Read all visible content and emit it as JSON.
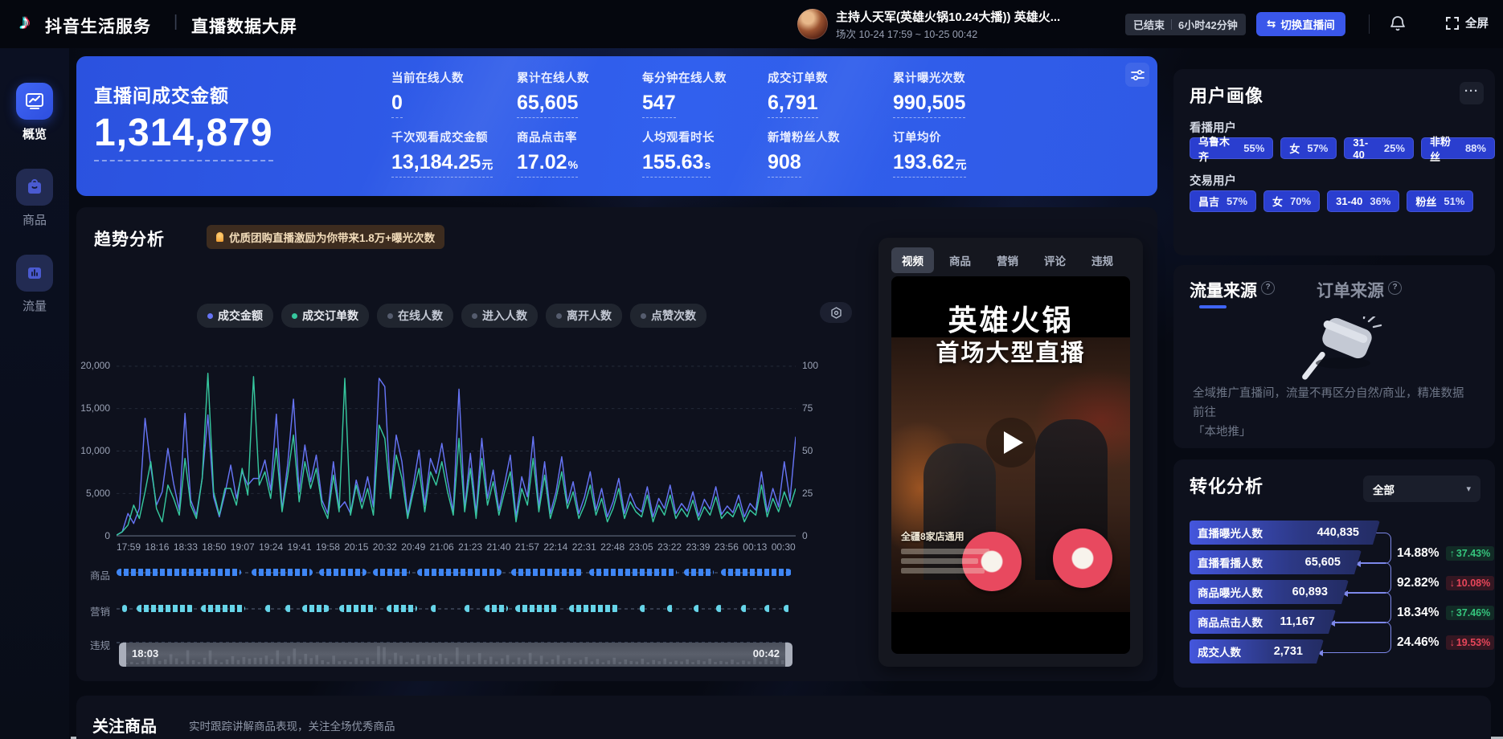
{
  "icons": {
    "tiktok_note": "♪",
    "divider": "|",
    "switch_arrows": "⇆",
    "dropdown_arrow": "▾",
    "more": "···",
    "help": "?",
    "up_arrow": "↑",
    "down_arrow": "↓"
  },
  "header": {
    "brand": "抖音生活服务",
    "page_title": "直播数据大屏",
    "host": {
      "name": "主持人天军(英雄火锅10.24大播)) 英雄火...",
      "session": "场次 10-24 17:59 ~ 10-25 00:42"
    },
    "status_badge": {
      "status": "已结束",
      "duration": "6小时42分钟"
    },
    "switch_button": "切换直播间",
    "fullscreen_label": "全屏"
  },
  "sidebar": {
    "items": [
      {
        "label": "概览",
        "active": true
      },
      {
        "label": "商品",
        "active": false
      },
      {
        "label": "流量",
        "active": false
      }
    ]
  },
  "kpi_card": {
    "main_label": "直播间成交金额",
    "main_value": "1,314,879",
    "metrics": [
      {
        "label": "当前在线人数",
        "value": "0",
        "unit": ""
      },
      {
        "label": "累计在线人数",
        "value": "65,605",
        "unit": ""
      },
      {
        "label": "每分钟在线人数",
        "value": "547",
        "unit": ""
      },
      {
        "label": "成交订单数",
        "value": "6,791",
        "unit": ""
      },
      {
        "label": "累计曝光次数",
        "value": "990,505",
        "unit": ""
      },
      {
        "label": "千次观看成交金额",
        "value": "13,184.25",
        "unit": "元"
      },
      {
        "label": "商品点击率",
        "value": "17.02",
        "unit": "%"
      },
      {
        "label": "人均观看时长",
        "value": "155.63",
        "unit": "s"
      },
      {
        "label": "新增粉丝人数",
        "value": "908",
        "unit": ""
      },
      {
        "label": "订单均价",
        "value": "193.62",
        "unit": "元"
      }
    ]
  },
  "trend": {
    "title": "趋势分析",
    "notice": "优质团购直播激励为你带来1.8万+曝光次数",
    "legend": [
      {
        "label": "成交金额",
        "color": "#6674f5",
        "active": true
      },
      {
        "label": "成交订单数",
        "color": "#36c79e",
        "active": true
      },
      {
        "label": "在线人数",
        "color": "#555c6e",
        "active": false
      },
      {
        "label": "进入人数",
        "color": "#555c6e",
        "active": false
      },
      {
        "label": "离开人数",
        "color": "#555c6e",
        "active": false
      },
      {
        "label": "点赞次数",
        "color": "#555c6e",
        "active": false
      }
    ],
    "chart_data": {
      "type": "line",
      "title": "趋势分析",
      "x_tick_labels": [
        "17:59",
        "18:16",
        "18:33",
        "18:50",
        "19:07",
        "19:24",
        "19:41",
        "19:58",
        "20:15",
        "20:32",
        "20:49",
        "21:06",
        "21:23",
        "21:40",
        "21:57",
        "22:14",
        "22:31",
        "22:48",
        "23:05",
        "23:22",
        "23:39",
        "23:56",
        "00:13",
        "00:30"
      ],
      "y_left": {
        "ticks": [
          "20,000",
          "15,000",
          "10,000",
          "5,000",
          "0"
        ],
        "max": 20000
      },
      "y_right": {
        "ticks": [
          "100",
          "75",
          "50",
          "25",
          "0"
        ],
        "max": 100
      },
      "grid": true,
      "legend_position": "top",
      "series": [
        {
          "name": "成交金额",
          "axis": "left",
          "color": "#6674f5",
          "values": [
            0,
            400,
            2600,
            1400,
            3200,
            14000,
            8200,
            3600,
            5200,
            10400,
            6200,
            3000,
            14600,
            4200,
            2400,
            6800,
            14400,
            4600,
            2200,
            5000,
            8400,
            4400,
            7600,
            6000,
            6800,
            6800,
            9000,
            5400,
            14500,
            3000,
            8600,
            16300,
            5200,
            10800,
            6400,
            9600,
            4200,
            2600,
            8800,
            3200,
            4000,
            2600,
            6600,
            4000,
            7000,
            3400,
            18800,
            17800,
            4800,
            12000,
            8800,
            2400,
            6000,
            10200,
            3600,
            9200,
            7400,
            11000,
            6600,
            2800,
            17500,
            3200,
            9800,
            2600,
            11600,
            4400,
            7800,
            3000,
            6200,
            9600,
            2200,
            7000,
            4600,
            11800,
            3400,
            8800,
            2600,
            5200,
            9400,
            3800,
            6400,
            2600,
            4600,
            7600,
            3000,
            5600,
            2200,
            4000,
            6800,
            2600,
            5000,
            3400,
            2800,
            5800,
            2200,
            4400,
            3200,
            6000,
            2600,
            3800,
            2900,
            5200,
            2300,
            4300,
            3100,
            5800,
            2500,
            3500,
            2700,
            4800,
            2200,
            3800,
            3000,
            7600,
            2800,
            5600,
            3400,
            8800,
            4200,
            11800
          ]
        },
        {
          "name": "成交订单数",
          "axis": "right",
          "color": "#36c79e",
          "values": [
            0,
            2,
            6,
            18,
            10,
            26,
            44,
            16,
            8,
            30,
            22,
            12,
            46,
            18,
            10,
            34,
            97,
            26,
            12,
            28,
            28,
            18,
            40,
            24,
            95,
            30,
            38,
            22,
            52,
            14,
            36,
            60,
            20,
            44,
            28,
            40,
            18,
            10,
            36,
            14,
            94,
            12,
            30,
            16,
            28,
            12,
            66,
            58,
            22,
            48,
            34,
            10,
            26,
            40,
            14,
            38,
            30,
            44,
            26,
            12,
            58,
            14,
            40,
            10,
            46,
            18,
            32,
            12,
            26,
            38,
            8,
            28,
            18,
            46,
            14,
            36,
            10,
            22,
            38,
            16,
            26,
            10,
            18,
            30,
            12,
            22,
            8,
            16,
            28,
            10,
            20,
            14,
            11,
            24,
            8,
            18,
            12,
            24,
            10,
            16,
            11,
            21,
            9,
            17,
            12,
            23,
            10,
            14,
            11,
            19,
            8,
            15,
            12,
            30,
            11,
            22,
            14,
            26,
            17,
            28
          ]
        }
      ]
    },
    "event_rows": [
      {
        "label": "商品",
        "color": "#3f86f5",
        "segments": [
          [
            0,
            18.5
          ],
          [
            20,
            29
          ],
          [
            30,
            37
          ],
          [
            38,
            43.5
          ],
          [
            44.5,
            57
          ],
          [
            58.5,
            69
          ],
          [
            70,
            83
          ],
          [
            84,
            88.5
          ],
          [
            89.5,
            100
          ]
        ]
      },
      {
        "label": "营销",
        "color": "#66d4e8",
        "segments": [
          [
            0.8,
            1.6
          ],
          [
            3,
            11.5
          ],
          [
            12.5,
            19
          ],
          [
            22,
            23
          ],
          [
            25,
            26
          ],
          [
            27.5,
            31.5
          ],
          [
            33,
            38.5
          ],
          [
            40,
            44.5
          ],
          [
            46.5,
            47.5
          ],
          [
            51.5,
            52.5
          ],
          [
            54.5,
            58
          ],
          [
            59,
            65.5
          ],
          [
            67,
            74.5
          ],
          [
            77.5,
            78.5
          ],
          [
            81.5,
            82.5
          ],
          [
            85.5,
            86.5
          ],
          [
            88.8,
            89.8
          ],
          [
            92.5,
            93.5
          ],
          [
            96,
            97
          ],
          [
            98.8,
            99.8
          ]
        ]
      },
      {
        "label": "违规",
        "color": "#3a4252",
        "segments": []
      }
    ],
    "scrubber": {
      "start_label": "18:03",
      "end_label": "00:42"
    }
  },
  "video_panel": {
    "tabs": [
      {
        "label": "视频",
        "active": true
      },
      {
        "label": "商品",
        "active": false
      },
      {
        "label": "营销",
        "active": false
      },
      {
        "label": "评论",
        "active": false
      },
      {
        "label": "违规",
        "active": false
      }
    ],
    "thumbnail": {
      "title_line1": "英雄火锅",
      "title_line2": "首场大型直播",
      "caption": "全疆8家店通用"
    }
  },
  "user_profile": {
    "title": "用户画像",
    "groups": [
      {
        "label": "看播用户",
        "tags": [
          {
            "name": "乌鲁木齐",
            "pct": "55%"
          },
          {
            "name": "女",
            "pct": "57%"
          },
          {
            "name": "31-40",
            "pct": "25%"
          },
          {
            "name": "非粉丝",
            "pct": "88%"
          }
        ]
      },
      {
        "label": "交易用户",
        "tags": [
          {
            "name": "昌吉",
            "pct": "57%"
          },
          {
            "name": "女",
            "pct": "70%"
          },
          {
            "name": "31-40",
            "pct": "36%"
          },
          {
            "name": "粉丝",
            "pct": "51%"
          }
        ]
      }
    ]
  },
  "traffic_source": {
    "tabs": [
      {
        "label": "流量来源",
        "active": true
      },
      {
        "label": "订单来源",
        "active": false
      }
    ],
    "empty_line1": "全域推广直播间，流量不再区分自然/商业，精准数据前往",
    "empty_line2": "「本地推」"
  },
  "conversion": {
    "title": "转化分析",
    "filter_label": "全部",
    "funnel": [
      {
        "label": "直播曝光人数",
        "value": "440,835"
      },
      {
        "label": "直播看播人数",
        "value": "65,605"
      },
      {
        "label": "商品曝光人数",
        "value": "60,893"
      },
      {
        "label": "商品点击人数",
        "value": "11,167"
      },
      {
        "label": "成交人数",
        "value": "2,731"
      }
    ],
    "rates": [
      {
        "value": "14.88%",
        "change": "37.43%",
        "direction": "up"
      },
      {
        "value": "92.82%",
        "change": "10.08%",
        "direction": "down"
      },
      {
        "value": "18.34%",
        "change": "37.46%",
        "direction": "up"
      },
      {
        "value": "24.46%",
        "change": "19.53%",
        "direction": "down"
      }
    ]
  },
  "bottom": {
    "title": "关注商品",
    "subtitle": "实时跟踪讲解商品表现，关注全场优秀商品"
  }
}
